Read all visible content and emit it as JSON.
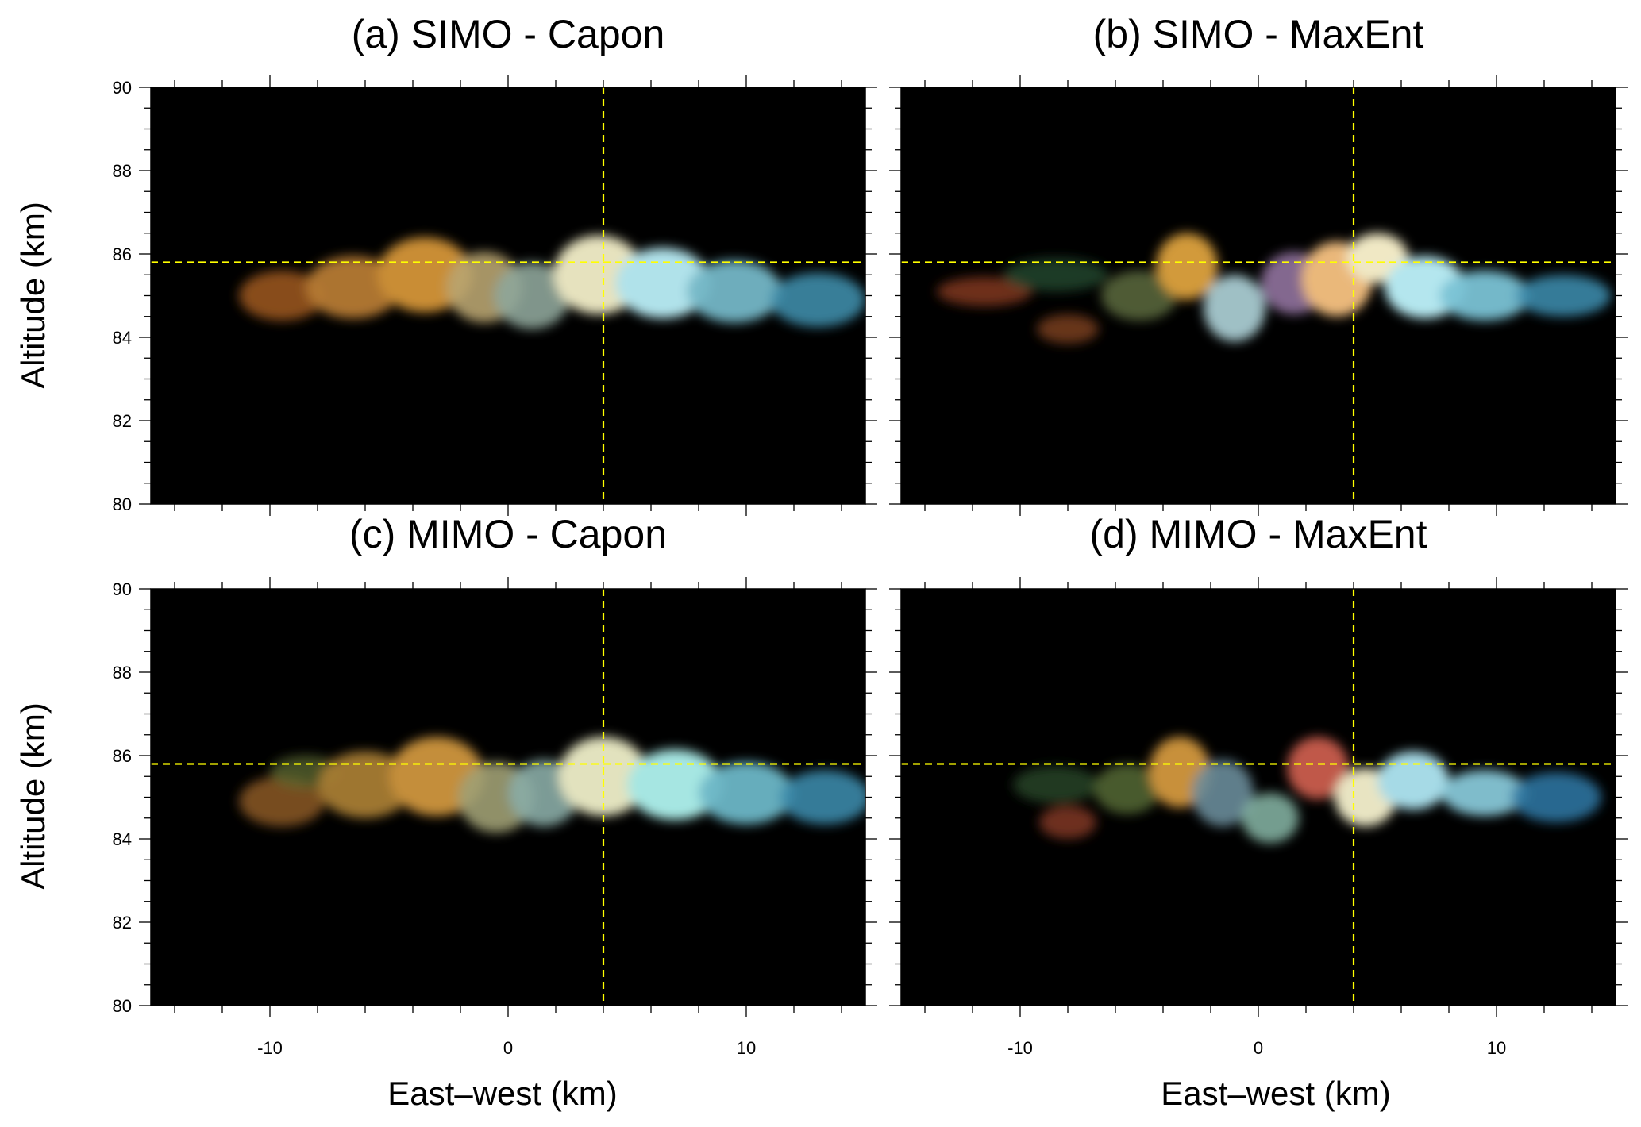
{
  "figure": {
    "ylabel_top": "Altitude (km)",
    "ylabel_bottom": "Altitude (km)",
    "xlabel_left": "East–west (km)",
    "xlabel_right": "East–west (km)"
  },
  "chart_data": [
    {
      "type": "heatmap",
      "panel": "a",
      "title": "(a) SIMO - Capon",
      "xlabel": "",
      "ylabel": "Altitude (km)",
      "xlim": [
        -15,
        15
      ],
      "ylim": [
        80,
        90
      ],
      "xticks": [],
      "yticks": [
        "80",
        "82",
        "84",
        "86",
        "88",
        "90"
      ],
      "crosshair": {
        "x": 4,
        "y": 85.8,
        "color": "#ffff00",
        "style": "dashed"
      },
      "background": "#000000",
      "blobs": [
        {
          "x": -9.5,
          "y": 85.0,
          "sx": 1.8,
          "sy": 0.6,
          "color": "#a05a22",
          "alpha": 0.85
        },
        {
          "x": -6.5,
          "y": 85.2,
          "sx": 2.0,
          "sy": 0.75,
          "color": "#b57a32",
          "alpha": 0.95
        },
        {
          "x": -3.5,
          "y": 85.5,
          "sx": 2.0,
          "sy": 0.9,
          "color": "#c98d36",
          "alpha": 1.0
        },
        {
          "x": -1.0,
          "y": 85.2,
          "sx": 1.6,
          "sy": 0.85,
          "color": "#b8a470",
          "alpha": 0.9
        },
        {
          "x": 1.0,
          "y": 85.0,
          "sx": 1.6,
          "sy": 0.8,
          "color": "#8ea59a",
          "alpha": 0.9
        },
        {
          "x": 3.8,
          "y": 85.5,
          "sx": 1.9,
          "sy": 0.95,
          "color": "#e6e2be",
          "alpha": 1.0
        },
        {
          "x": 6.5,
          "y": 85.3,
          "sx": 2.0,
          "sy": 0.85,
          "color": "#b0e2ea",
          "alpha": 1.0
        },
        {
          "x": 9.5,
          "y": 85.1,
          "sx": 2.0,
          "sy": 0.75,
          "color": "#74b6c6",
          "alpha": 0.95
        },
        {
          "x": 13.0,
          "y": 84.9,
          "sx": 2.0,
          "sy": 0.65,
          "color": "#3e8ca8",
          "alpha": 0.9
        }
      ]
    },
    {
      "type": "heatmap",
      "panel": "b",
      "title": "(b) SIMO - MaxEnt",
      "xlabel": "",
      "ylabel": "",
      "xlim": [
        -15,
        15
      ],
      "ylim": [
        80,
        90
      ],
      "xticks": [],
      "yticks": [],
      "crosshair": {
        "x": 4,
        "y": 85.8,
        "color": "#ffff00",
        "style": "dashed"
      },
      "background": "#000000",
      "blobs": [
        {
          "x": -11.5,
          "y": 85.1,
          "sx": 2.0,
          "sy": 0.35,
          "color": "#8a3c22",
          "alpha": 0.8
        },
        {
          "x": -8.0,
          "y": 84.2,
          "sx": 1.3,
          "sy": 0.35,
          "color": "#8a4824",
          "alpha": 0.75
        },
        {
          "x": -8.5,
          "y": 85.5,
          "sx": 2.2,
          "sy": 0.4,
          "color": "#2c5a3a",
          "alpha": 0.65
        },
        {
          "x": -5.0,
          "y": 85.0,
          "sx": 1.6,
          "sy": 0.6,
          "color": "#6a7a48",
          "alpha": 0.75
        },
        {
          "x": -3.0,
          "y": 85.7,
          "sx": 1.3,
          "sy": 0.8,
          "color": "#d29a3a",
          "alpha": 1.0
        },
        {
          "x": -1.0,
          "y": 84.7,
          "sx": 1.3,
          "sy": 0.8,
          "color": "#a8cad0",
          "alpha": 0.95
        },
        {
          "x": 1.5,
          "y": 85.3,
          "sx": 1.4,
          "sy": 0.75,
          "color": "#9a7aa8",
          "alpha": 0.85
        },
        {
          "x": 3.3,
          "y": 85.4,
          "sx": 1.5,
          "sy": 0.9,
          "color": "#eab87a",
          "alpha": 1.0
        },
        {
          "x": 5.0,
          "y": 85.9,
          "sx": 1.3,
          "sy": 0.6,
          "color": "#f0e8c4",
          "alpha": 1.0
        },
        {
          "x": 7.0,
          "y": 85.2,
          "sx": 1.7,
          "sy": 0.75,
          "color": "#b4e6ee",
          "alpha": 1.0
        },
        {
          "x": 9.5,
          "y": 85.0,
          "sx": 1.9,
          "sy": 0.6,
          "color": "#7ac2d4",
          "alpha": 0.95
        },
        {
          "x": 12.8,
          "y": 85.0,
          "sx": 2.0,
          "sy": 0.5,
          "color": "#3a88a8",
          "alpha": 0.9
        }
      ]
    },
    {
      "type": "heatmap",
      "panel": "c",
      "title": "(c) MIMO - Capon",
      "xlabel": "East–west (km)",
      "ylabel": "Altitude (km)",
      "xlim": [
        -15,
        15
      ],
      "ylim": [
        80,
        90
      ],
      "xticks": [
        "-10",
        "0",
        "10"
      ],
      "yticks": [
        "80",
        "82",
        "84",
        "86",
        "88",
        "90"
      ],
      "crosshair": {
        "x": 4,
        "y": 85.8,
        "color": "#ffff00",
        "style": "dashed"
      },
      "background": "#000000",
      "blobs": [
        {
          "x": -9.5,
          "y": 84.9,
          "sx": 1.8,
          "sy": 0.6,
          "color": "#8c5a24",
          "alpha": 0.85
        },
        {
          "x": -8.5,
          "y": 85.6,
          "sx": 1.5,
          "sy": 0.4,
          "color": "#5c6a30",
          "alpha": 0.75
        },
        {
          "x": -6.0,
          "y": 85.3,
          "sx": 2.0,
          "sy": 0.8,
          "color": "#a67c34",
          "alpha": 0.95
        },
        {
          "x": -3.0,
          "y": 85.5,
          "sx": 2.0,
          "sy": 0.95,
          "color": "#c48e3a",
          "alpha": 1.0
        },
        {
          "x": -0.5,
          "y": 85.0,
          "sx": 1.6,
          "sy": 0.85,
          "color": "#a0a074",
          "alpha": 0.9
        },
        {
          "x": 1.5,
          "y": 85.1,
          "sx": 1.5,
          "sy": 0.8,
          "color": "#8aaca6",
          "alpha": 0.9
        },
        {
          "x": 4.0,
          "y": 85.5,
          "sx": 1.9,
          "sy": 0.95,
          "color": "#e2e2be",
          "alpha": 1.0
        },
        {
          "x": 7.0,
          "y": 85.3,
          "sx": 2.0,
          "sy": 0.85,
          "color": "#a6e6e2",
          "alpha": 1.0
        },
        {
          "x": 10.0,
          "y": 85.1,
          "sx": 2.0,
          "sy": 0.75,
          "color": "#6cb6c6",
          "alpha": 0.95
        },
        {
          "x": 13.3,
          "y": 85.0,
          "sx": 1.9,
          "sy": 0.65,
          "color": "#3a88a8",
          "alpha": 0.9
        }
      ]
    },
    {
      "type": "heatmap",
      "panel": "d",
      "title": "(d) MIMO - MaxEnt",
      "xlabel": "East–west (km)",
      "ylabel": "",
      "xlim": [
        -15,
        15
      ],
      "ylim": [
        80,
        90
      ],
      "xticks": [
        "-10",
        "0",
        "10"
      ],
      "yticks": [],
      "crosshair": {
        "x": 4,
        "y": 85.8,
        "color": "#ffff00",
        "style": "dashed"
      },
      "background": "#000000",
      "blobs": [
        {
          "x": -8.0,
          "y": 84.4,
          "sx": 1.2,
          "sy": 0.4,
          "color": "#8a3c24",
          "alpha": 0.8
        },
        {
          "x": -8.5,
          "y": 85.3,
          "sx": 1.8,
          "sy": 0.45,
          "color": "#2c5230",
          "alpha": 0.7
        },
        {
          "x": -5.5,
          "y": 85.2,
          "sx": 1.4,
          "sy": 0.6,
          "color": "#5a7038",
          "alpha": 0.8
        },
        {
          "x": -3.3,
          "y": 85.6,
          "sx": 1.3,
          "sy": 0.85,
          "color": "#c8903a",
          "alpha": 1.0
        },
        {
          "x": -1.5,
          "y": 85.1,
          "sx": 1.3,
          "sy": 0.8,
          "color": "#6a8c9a",
          "alpha": 0.9
        },
        {
          "x": 0.5,
          "y": 84.5,
          "sx": 1.2,
          "sy": 0.6,
          "color": "#88b8a8",
          "alpha": 0.85
        },
        {
          "x": 2.5,
          "y": 85.7,
          "sx": 1.3,
          "sy": 0.75,
          "color": "#c0584a",
          "alpha": 1.0
        },
        {
          "x": 4.5,
          "y": 85.0,
          "sx": 1.3,
          "sy": 0.7,
          "color": "#e8e4c2",
          "alpha": 1.0
        },
        {
          "x": 6.5,
          "y": 85.4,
          "sx": 1.5,
          "sy": 0.7,
          "color": "#a6dae6",
          "alpha": 1.0
        },
        {
          "x": 9.5,
          "y": 85.1,
          "sx": 1.8,
          "sy": 0.55,
          "color": "#86c6d6",
          "alpha": 0.95
        },
        {
          "x": 12.5,
          "y": 85.0,
          "sx": 1.9,
          "sy": 0.6,
          "color": "#2e74a0",
          "alpha": 0.9
        }
      ]
    }
  ]
}
